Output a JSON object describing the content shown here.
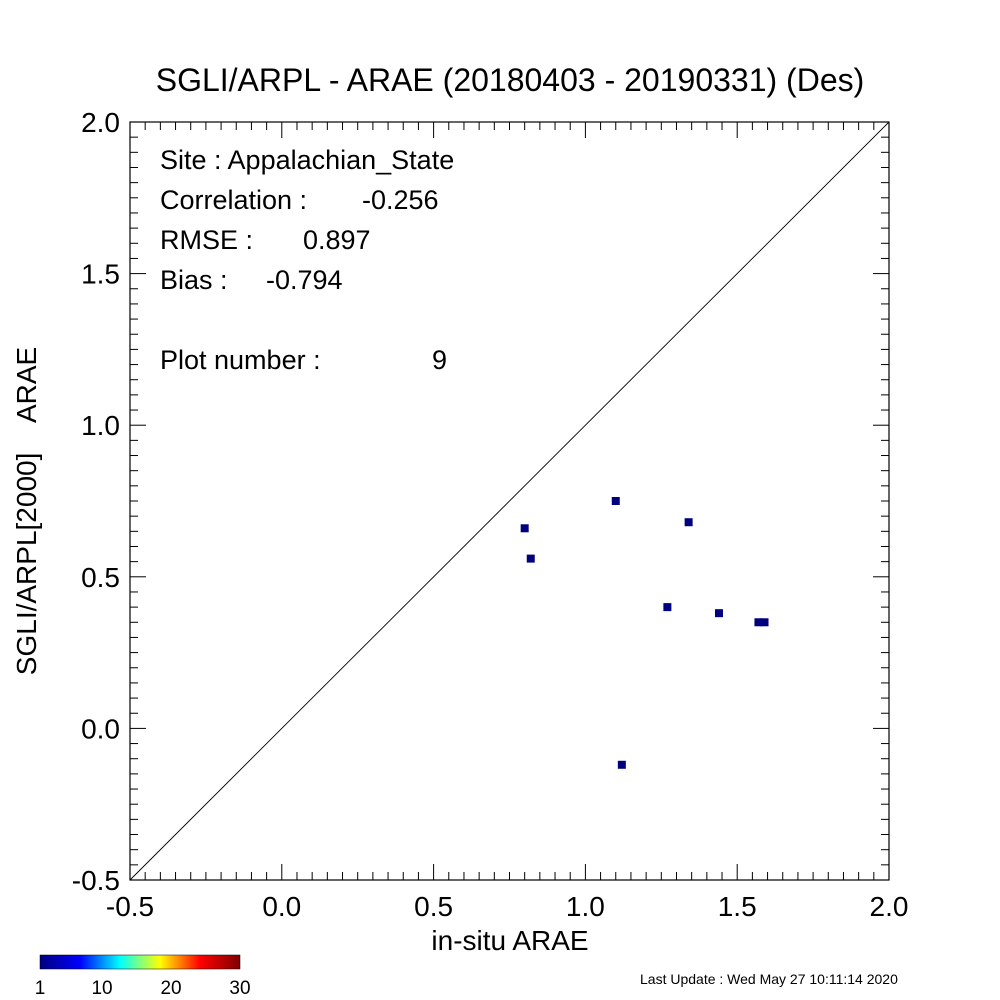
{
  "chart_data": {
    "type": "scatter",
    "title": "SGLI/ARPL - ARAE (20180403 - 20190331) (Des)",
    "xlabel": "in-situ ARAE",
    "ylabel": "SGLI/ARPL[2000]    ARAE",
    "xlim": [
      -0.5,
      2.0
    ],
    "ylim": [
      -0.5,
      2.0
    ],
    "xticks": [
      "-0.5",
      "0.0",
      "0.5",
      "1.0",
      "1.5",
      "2.0"
    ],
    "yticks": [
      "-0.5",
      "0.0",
      "0.5",
      "1.0",
      "1.5",
      "2.0"
    ],
    "xtick_values": [
      -0.5,
      0.0,
      0.5,
      1.0,
      1.5,
      2.0
    ],
    "ytick_values": [
      -0.5,
      0.0,
      0.5,
      1.0,
      1.5,
      2.0
    ],
    "reference_line": "1:1",
    "grid": false,
    "point_color": "#00007f",
    "points": [
      {
        "x": 0.8,
        "y": 0.66
      },
      {
        "x": 0.82,
        "y": 0.56
      },
      {
        "x": 1.1,
        "y": 0.75
      },
      {
        "x": 1.12,
        "y": -0.12
      },
      {
        "x": 1.27,
        "y": 0.4
      },
      {
        "x": 1.34,
        "y": 0.68
      },
      {
        "x": 1.44,
        "y": 0.38
      },
      {
        "x": 1.57,
        "y": 0.35
      },
      {
        "x": 1.59,
        "y": 0.35
      }
    ],
    "stats": {
      "site": "Site : Appalachian_State",
      "correlation_label": "Correlation :",
      "correlation_value": "-0.256",
      "rmse_label": "RMSE :",
      "rmse_value": "0.897",
      "bias_label": "Bias :",
      "bias_value": "-0.794",
      "plot_number_label": "Plot number :",
      "plot_number_value": "9"
    },
    "colorbar": {
      "labels": [
        "1",
        "10",
        "20",
        "30"
      ],
      "label_values": [
        1,
        10,
        20,
        30
      ],
      "range": [
        1,
        30
      ],
      "colors": [
        "#00007f",
        "#0000ff",
        "#00ffff",
        "#ffff00",
        "#ff0000",
        "#7f0000"
      ]
    }
  },
  "footer": {
    "last_update": "Last Update : Wed May 27 10:11:14 2020"
  }
}
